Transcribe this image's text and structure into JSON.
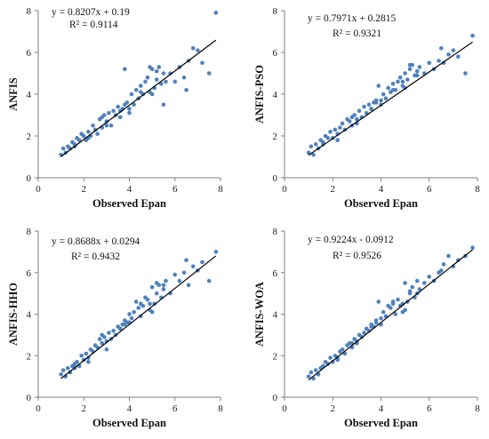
{
  "chart_data": [
    {
      "type": "scatter",
      "xlabel": "Observed Epan",
      "ylabel": "ANFIS",
      "xlim": [
        0,
        8
      ],
      "ylim": [
        0,
        8
      ],
      "xticks": [
        "0",
        "2",
        "4",
        "6",
        "8"
      ],
      "yticks": [
        "0",
        "2",
        "4",
        "6",
        "8"
      ],
      "equation": "y = 0.8207x + 0.19",
      "r2_label": "R² = 0.9114",
      "trendline": {
        "slope": 0.8207,
        "intercept": 0.19,
        "x_range": [
          1.0,
          7.8
        ]
      },
      "point_color": "#4f81bd",
      "line_color": "#000000",
      "x": [
        1.0,
        1.1,
        1.2,
        1.3,
        1.4,
        1.5,
        1.6,
        1.7,
        1.8,
        1.9,
        2.0,
        2.1,
        2.2,
        2.3,
        2.4,
        2.5,
        2.6,
        2.7,
        2.8,
        2.9,
        3.0,
        3.1,
        3.2,
        3.3,
        3.4,
        3.5,
        3.6,
        3.7,
        3.8,
        3.9,
        4.0,
        4.1,
        4.2,
        4.3,
        4.4,
        4.5,
        4.6,
        4.7,
        4.8,
        4.9,
        5.0,
        5.1,
        5.2,
        5.3,
        5.4,
        5.5,
        5.6,
        5.8,
        6.0,
        6.2,
        6.4,
        6.6,
        6.8,
        7.0,
        7.2,
        7.5,
        7.8,
        3.8,
        4.9,
        5.5,
        1.6,
        2.2,
        3.0,
        4.0,
        5.0,
        6.5,
        2.8,
        3.6,
        4.5,
        5.2
      ],
      "y": [
        1.1,
        1.4,
        1.2,
        1.5,
        1.4,
        1.7,
        1.6,
        1.9,
        1.8,
        2.1,
        2.0,
        1.8,
        2.2,
        2.0,
        2.5,
        2.3,
        2.1,
        2.8,
        2.4,
        3.0,
        2.7,
        3.1,
        2.5,
        3.2,
        3.0,
        3.4,
        2.9,
        3.3,
        3.5,
        3.6,
        3.3,
        4.0,
        3.5,
        4.2,
        3.8,
        4.4,
        4.0,
        4.6,
        4.8,
        4.1,
        5.2,
        4.3,
        4.7,
        5.3,
        4.5,
        5.0,
        4.6,
        5.0,
        4.6,
        5.3,
        4.8,
        5.6,
        6.2,
        6.1,
        5.5,
        5.0,
        7.9,
        5.2,
        5.3,
        3.5,
        1.5,
        1.9,
        2.5,
        3.1,
        4.0,
        4.2,
        2.9,
        3.2,
        4.1,
        5.1
      ]
    },
    {
      "type": "scatter",
      "xlabel": "Observed Epan",
      "ylabel": "ANFIS-PSO",
      "xlim": [
        0,
        8
      ],
      "ylim": [
        0,
        8
      ],
      "xticks": [
        "0",
        "2",
        "4",
        "6",
        "8"
      ],
      "yticks": [
        "0",
        "2",
        "4",
        "6",
        "8"
      ],
      "equation": "y = 0.7971x + 0.2815",
      "r2_label": "R² = 0.9321",
      "trendline": {
        "slope": 0.7971,
        "intercept": 0.2815,
        "x_range": [
          1.0,
          7.8
        ]
      },
      "point_color": "#4f81bd",
      "line_color": "#000000",
      "x": [
        1.0,
        1.1,
        1.2,
        1.3,
        1.4,
        1.5,
        1.6,
        1.7,
        1.8,
        1.9,
        2.0,
        2.1,
        2.2,
        2.3,
        2.4,
        2.5,
        2.6,
        2.7,
        2.8,
        2.9,
        3.0,
        3.1,
        3.2,
        3.3,
        3.4,
        3.5,
        3.6,
        3.7,
        3.8,
        3.9,
        4.0,
        4.1,
        4.2,
        4.3,
        4.4,
        4.5,
        4.6,
        4.7,
        4.8,
        4.9,
        5.0,
        5.1,
        5.2,
        5.3,
        5.4,
        5.5,
        5.6,
        5.8,
        6.0,
        6.2,
        6.4,
        6.6,
        6.8,
        7.0,
        7.2,
        7.5,
        7.8,
        3.8,
        4.9,
        5.5,
        1.6,
        2.2,
        3.0,
        4.0,
        5.0,
        6.5,
        2.8,
        3.6,
        4.5,
        5.2
      ],
      "y": [
        1.2,
        1.5,
        1.1,
        1.6,
        1.4,
        1.8,
        1.7,
        2.0,
        1.9,
        2.2,
        1.9,
        2.3,
        2.1,
        2.4,
        2.6,
        2.3,
        2.8,
        2.7,
        2.5,
        3.0,
        2.8,
        3.2,
        2.9,
        3.4,
        3.1,
        3.5,
        3.3,
        3.6,
        3.7,
        4.4,
        3.5,
        4.0,
        3.8,
        4.3,
        4.1,
        4.5,
        4.2,
        4.6,
        4.8,
        4.4,
        5.0,
        4.7,
        5.2,
        5.4,
        4.9,
        5.1,
        5.3,
        5.0,
        5.5,
        5.2,
        5.6,
        5.5,
        5.9,
        6.1,
        5.8,
        5.0,
        6.8,
        3.6,
        4.6,
        4.9,
        1.6,
        1.8,
        2.6,
        3.7,
        4.3,
        6.2,
        2.9,
        3.3,
        4.2,
        5.4
      ]
    },
    {
      "type": "scatter",
      "xlabel": "Observed Epan",
      "ylabel": "ANFIS-HHO",
      "xlim": [
        0,
        8
      ],
      "ylim": [
        0,
        8
      ],
      "xticks": [
        "0",
        "2",
        "4",
        "6",
        "8"
      ],
      "yticks": [
        "0",
        "2",
        "4",
        "6",
        "8"
      ],
      "equation": "y = 0.8688x + 0.0294",
      "r2_label": "R² = 0.9432",
      "trendline": {
        "slope": 0.8688,
        "intercept": 0.0294,
        "x_range": [
          1.0,
          7.8
        ]
      },
      "point_color": "#4f81bd",
      "line_color": "#000000",
      "x": [
        1.0,
        1.1,
        1.2,
        1.3,
        1.4,
        1.5,
        1.6,
        1.7,
        1.8,
        1.9,
        2.0,
        2.1,
        2.2,
        2.3,
        2.4,
        2.5,
        2.6,
        2.7,
        2.8,
        2.9,
        3.0,
        3.1,
        3.2,
        3.3,
        3.4,
        3.5,
        3.6,
        3.7,
        3.8,
        3.9,
        4.0,
        4.1,
        4.2,
        4.3,
        4.4,
        4.5,
        4.6,
        4.7,
        4.8,
        4.9,
        5.0,
        5.1,
        5.2,
        5.3,
        5.4,
        5.5,
        5.6,
        5.8,
        6.0,
        6.2,
        6.4,
        6.6,
        6.8,
        7.0,
        7.2,
        7.5,
        7.8,
        3.8,
        4.9,
        5.5,
        1.6,
        2.2,
        3.0,
        4.0,
        5.0,
        6.5,
        2.8,
        3.6,
        4.5,
        5.2
      ],
      "y": [
        1.1,
        1.3,
        1.0,
        1.4,
        1.2,
        1.5,
        1.6,
        1.7,
        1.5,
        2.0,
        1.8,
        2.1,
        1.9,
        2.3,
        2.2,
        2.5,
        2.4,
        2.8,
        2.6,
        2.9,
        2.7,
        3.1,
        2.8,
        3.2,
        3.0,
        3.4,
        3.3,
        3.5,
        3.7,
        3.6,
        4.0,
        3.8,
        4.1,
        4.6,
        4.3,
        4.5,
        4.4,
        4.8,
        4.7,
        4.2,
        5.3,
        4.5,
        5.0,
        5.4,
        4.8,
        5.2,
        5.6,
        5.0,
        5.9,
        5.6,
        6.0,
        5.4,
        6.3,
        6.1,
        6.5,
        5.6,
        7.0,
        3.5,
        4.5,
        5.4,
        1.4,
        1.7,
        2.3,
        3.6,
        4.1,
        6.6,
        3.0,
        3.3,
        3.9,
        5.5
      ]
    },
    {
      "type": "scatter",
      "xlabel": "Observed Epan",
      "ylabel": "ANFIS-WOA",
      "xlim": [
        0,
        8
      ],
      "ylim": [
        0,
        8
      ],
      "xticks": [
        "0",
        "2",
        "4",
        "6",
        "8"
      ],
      "yticks": [
        "0",
        "2",
        "4",
        "6",
        "8"
      ],
      "equation": "y = 0.9224x - 0.0912",
      "r2_label": "R² = 0.9526",
      "trendline": {
        "slope": 0.9224,
        "intercept": -0.0912,
        "x_range": [
          1.0,
          7.8
        ]
      },
      "point_color": "#4f81bd",
      "line_color": "#000000",
      "x": [
        1.0,
        1.1,
        1.2,
        1.3,
        1.4,
        1.5,
        1.6,
        1.7,
        1.8,
        1.9,
        2.0,
        2.1,
        2.2,
        2.3,
        2.4,
        2.5,
        2.6,
        2.7,
        2.8,
        2.9,
        3.0,
        3.1,
        3.2,
        3.3,
        3.4,
        3.5,
        3.6,
        3.7,
        3.8,
        3.9,
        4.0,
        4.1,
        4.2,
        4.3,
        4.4,
        4.5,
        4.6,
        4.7,
        4.8,
        4.9,
        5.0,
        5.1,
        5.2,
        5.3,
        5.4,
        5.5,
        5.6,
        5.8,
        6.0,
        6.2,
        6.4,
        6.6,
        6.8,
        7.0,
        7.2,
        7.5,
        7.8,
        3.8,
        4.9,
        5.5,
        1.6,
        2.2,
        3.0,
        4.0,
        5.0,
        6.5,
        2.8,
        3.6,
        4.5,
        5.2
      ],
      "y": [
        1.0,
        1.2,
        0.9,
        1.3,
        1.1,
        1.4,
        1.5,
        1.7,
        1.6,
        1.9,
        1.7,
        2.0,
        1.8,
        2.2,
        2.3,
        2.1,
        2.5,
        2.6,
        2.4,
        2.8,
        2.7,
        3.0,
        2.9,
        3.1,
        3.3,
        3.2,
        3.5,
        3.4,
        3.6,
        4.6,
        3.8,
        4.1,
        3.9,
        4.4,
        4.3,
        4.5,
        4.0,
        4.7,
        4.4,
        4.1,
        5.5,
        4.6,
        5.0,
        5.3,
        4.8,
        5.6,
        5.2,
        5.5,
        5.8,
        5.6,
        6.0,
        6.4,
        6.8,
        6.3,
        6.6,
        6.8,
        7.2,
        3.7,
        4.5,
        5.0,
        1.5,
        1.9,
        2.6,
        3.5,
        4.2,
        6.1,
        2.6,
        3.4,
        4.6,
        5.1
      ]
    }
  ]
}
